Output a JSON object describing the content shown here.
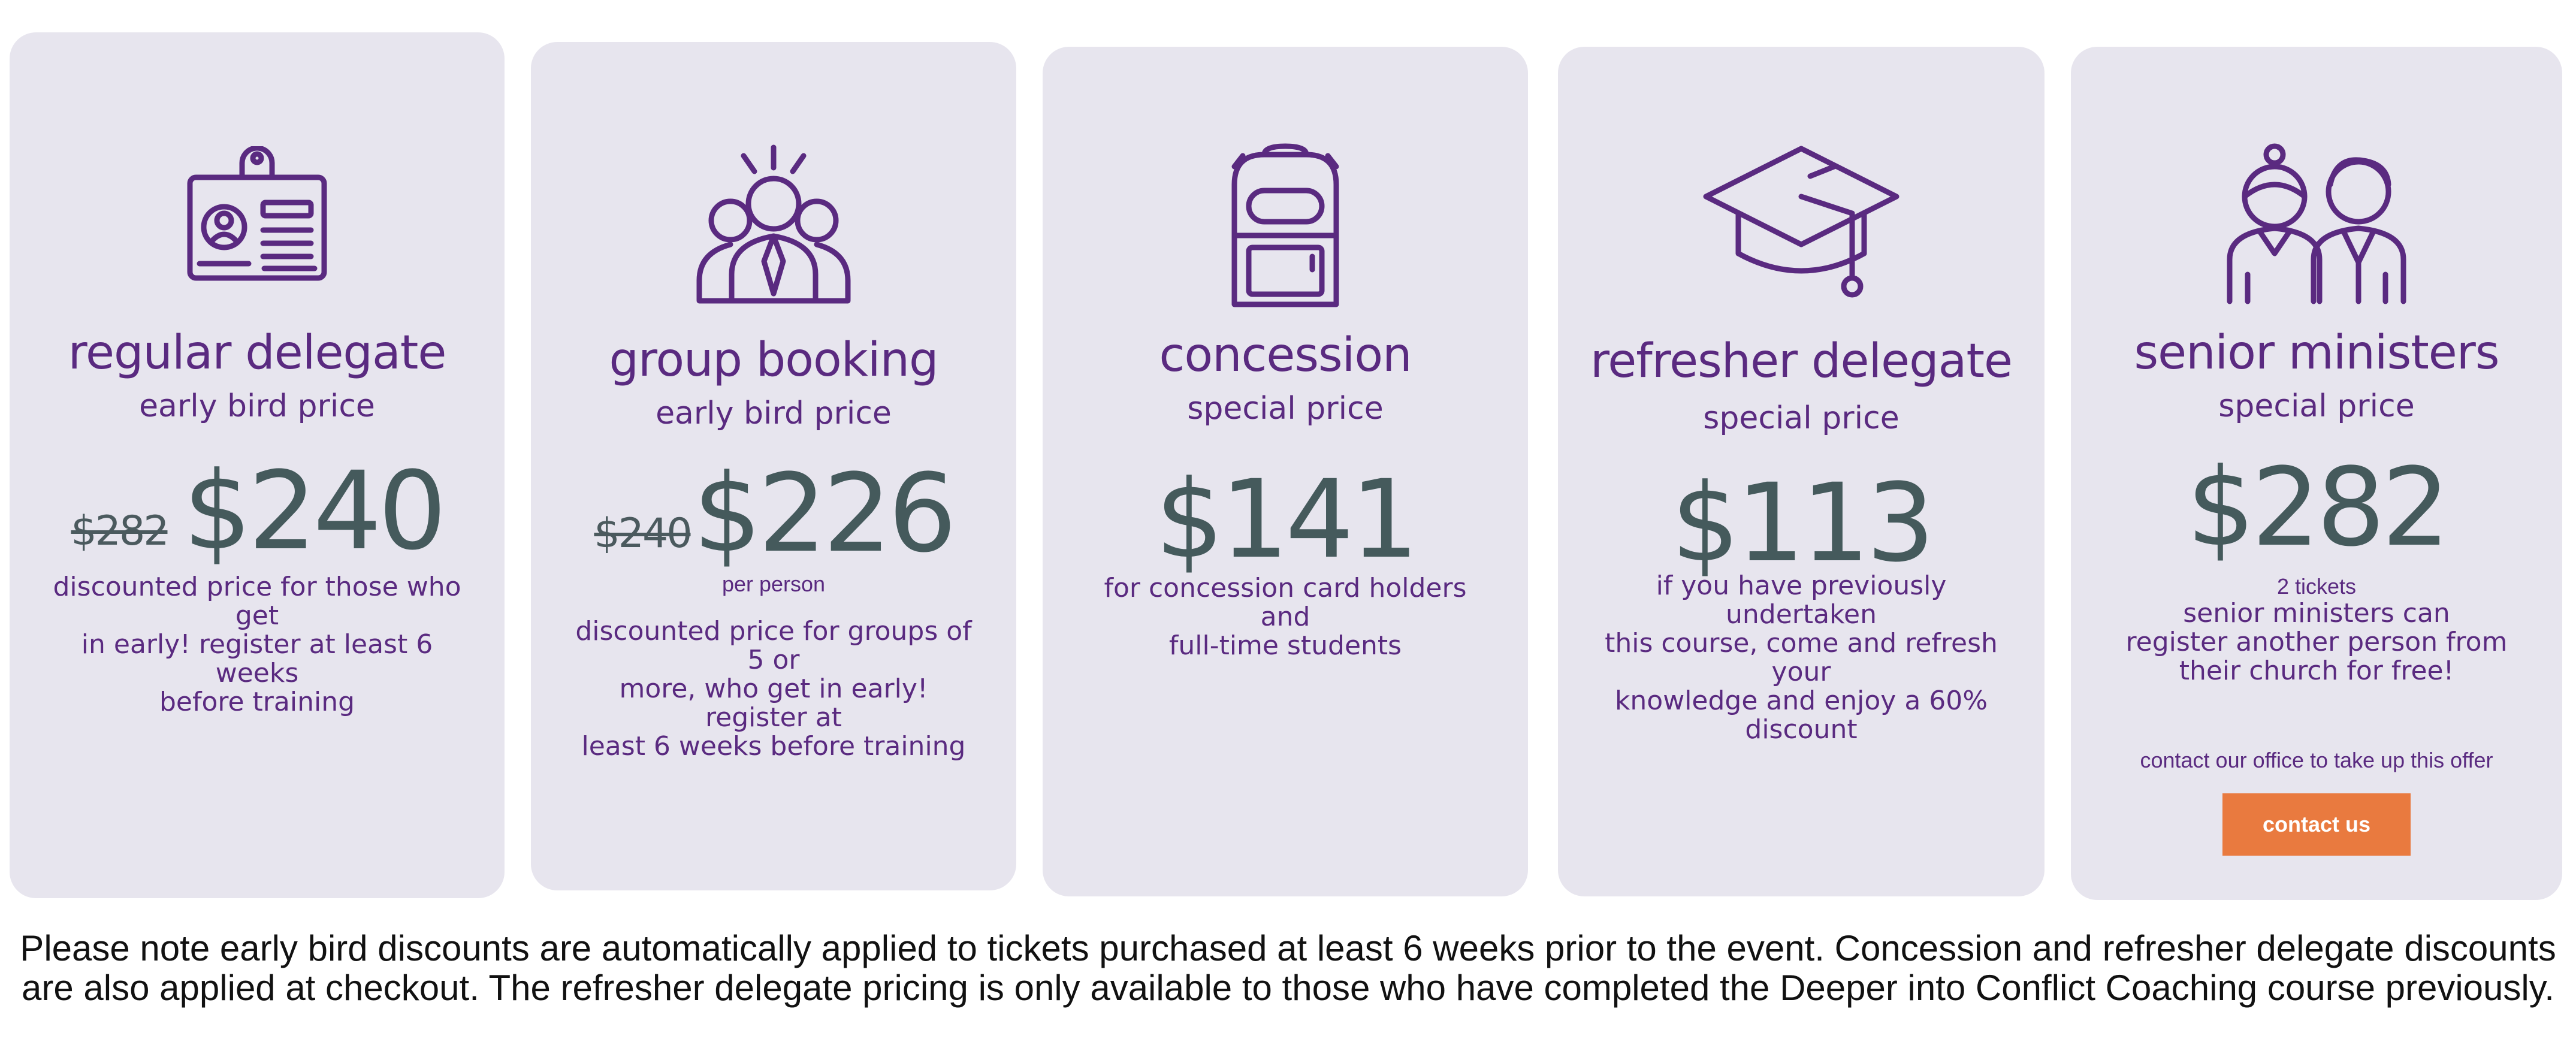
{
  "cards": [
    {
      "icon": "id-badge-icon",
      "title": "regular delegate",
      "subtitle": "early bird price",
      "old_price": "$282",
      "price": "$240",
      "description": [
        "discounted price for those who get",
        "in early! register at least 6 weeks",
        "before training"
      ]
    },
    {
      "icon": "group-people-icon",
      "title": "group booking",
      "subtitle": "early bird price",
      "old_price": "$240",
      "price": "$226",
      "per": "per person",
      "description": [
        "discounted price for groups of 5 or",
        "more, who get in early! register at",
        "least 6 weeks before training"
      ]
    },
    {
      "icon": "backpack-icon",
      "title": "concession",
      "subtitle": "special price",
      "price": "$141",
      "description": [
        "for concession card holders and",
        "full-time students"
      ]
    },
    {
      "icon": "graduation-cap-icon",
      "title": "refresher delegate",
      "subtitle": "special price",
      "price": "$113",
      "description": [
        "if you have previously undertaken",
        "this course, come and refresh your",
        "knowledge and enjoy a 60%",
        "discount"
      ]
    },
    {
      "icon": "two-people-icon",
      "title": "senior ministers",
      "subtitle": "special price",
      "price": "$282",
      "per": "2 tickets",
      "description": [
        "senior ministers can",
        "register another person from",
        "their church for free!"
      ],
      "contact_text": "contact our office to take up this offer",
      "button_label": "contact us"
    }
  ],
  "colors": {
    "card_bg": "#e7e5ee",
    "purple": "#5a2a80",
    "price": "#455a5c",
    "button": "#e97a3f"
  },
  "note": "Please note early bird discounts are automatically applied to tickets purchased at least 6 weeks prior to the event. Concession and refresher delegate discounts are also applied at checkout. The refresher delegate pricing is only available to those who have completed the Deeper into Conflict Coaching course previously."
}
